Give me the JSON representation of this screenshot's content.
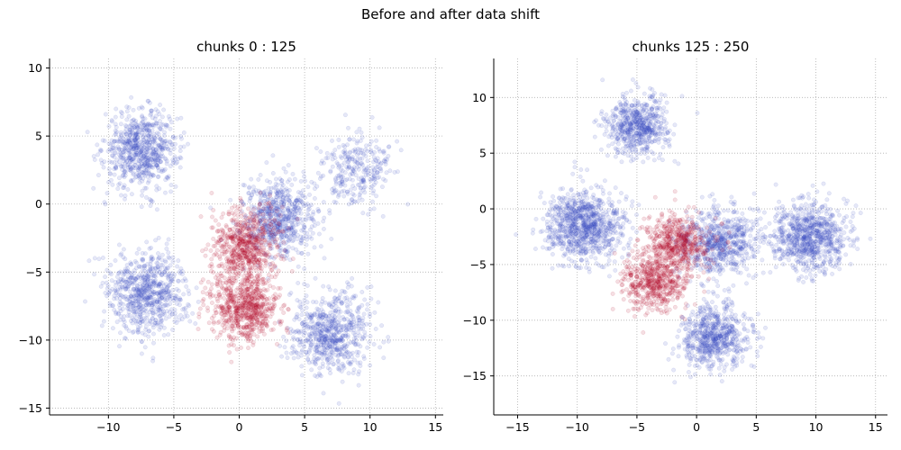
{
  "figure": {
    "title": "Before and after data shift"
  },
  "chart_data": [
    {
      "type": "scatter",
      "title": "chunks 0 : 125",
      "xlabel": "",
      "ylabel": "",
      "xlim": [
        -14.5,
        15.6
      ],
      "ylim": [
        -15.5,
        10.7
      ],
      "xticks": [
        -10,
        -5,
        0,
        5,
        10,
        15
      ],
      "yticks": [
        -15,
        -10,
        -5,
        0,
        5,
        10
      ],
      "grid": true,
      "colors": {
        "majority": "#3a4dc0",
        "minority": "#b40426"
      },
      "clusters": [
        {
          "class": "majority",
          "center": [
            -7.5,
            4.0
          ],
          "std": 1.4,
          "points": 700
        },
        {
          "class": "majority",
          "center": [
            -7.0,
            -6.5
          ],
          "std": 1.5,
          "points": 700
        },
        {
          "class": "majority",
          "center": [
            3.0,
            -1.0
          ],
          "std": 1.4,
          "points": 650
        },
        {
          "class": "majority",
          "center": [
            9.0,
            2.5
          ],
          "std": 1.3,
          "points": 280
        },
        {
          "class": "majority",
          "center": [
            7.0,
            -9.5
          ],
          "std": 1.5,
          "points": 650
        },
        {
          "class": "minority",
          "center": [
            0.5,
            -3.0
          ],
          "std": 1.3,
          "points": 600
        },
        {
          "class": "minority",
          "center": [
            0.5,
            -7.5
          ],
          "std": 1.3,
          "points": 700
        }
      ]
    },
    {
      "type": "scatter",
      "title": "chunks 125 : 250",
      "xlabel": "",
      "ylabel": "",
      "xlim": [
        -17,
        16
      ],
      "ylim": [
        -18.5,
        13.5
      ],
      "xticks": [
        -15,
        -10,
        -5,
        0,
        5,
        10,
        15
      ],
      "yticks": [
        -15,
        -10,
        -5,
        0,
        5,
        10
      ],
      "grid": true,
      "colors": {
        "majority": "#3a4dc0",
        "minority": "#b40426"
      },
      "clusters": [
        {
          "class": "majority",
          "center": [
            -5.0,
            7.5
          ],
          "std": 1.3,
          "points": 600
        },
        {
          "class": "majority",
          "center": [
            -9.5,
            -1.5
          ],
          "std": 1.6,
          "points": 900
        },
        {
          "class": "majority",
          "center": [
            2.0,
            -3.0
          ],
          "std": 1.5,
          "points": 650
        },
        {
          "class": "majority",
          "center": [
            9.5,
            -2.5
          ],
          "std": 1.5,
          "points": 800
        },
        {
          "class": "majority",
          "center": [
            1.5,
            -11.5
          ],
          "std": 1.4,
          "points": 650
        },
        {
          "class": "minority",
          "center": [
            -1.5,
            -3.0
          ],
          "std": 1.3,
          "points": 500
        },
        {
          "class": "minority",
          "center": [
            -3.5,
            -6.5
          ],
          "std": 1.3,
          "points": 550
        }
      ]
    }
  ]
}
